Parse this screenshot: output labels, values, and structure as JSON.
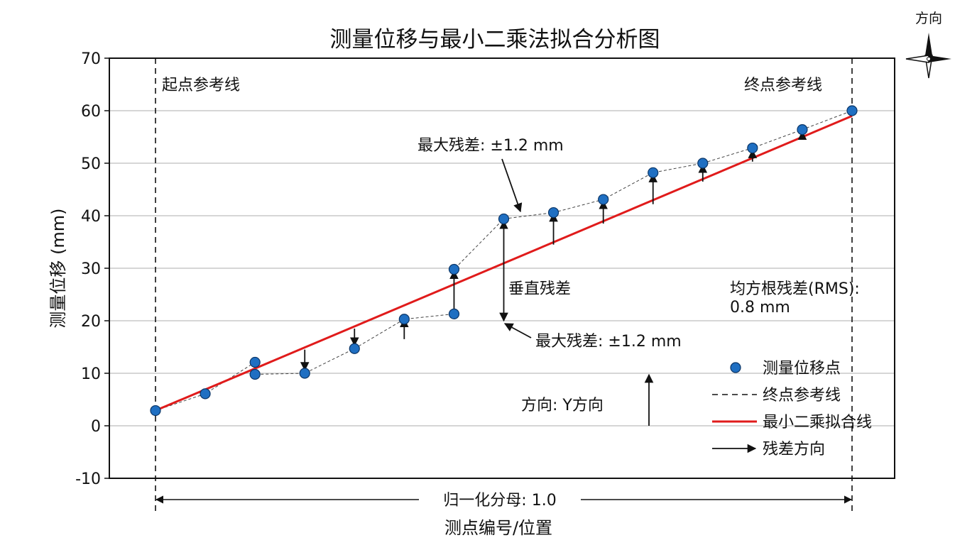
{
  "chart_data": {
    "type": "scatter",
    "title": "测量位移与最小二乘法拟合分析图",
    "xlabel": "测点编号/位置",
    "ylabel": "测量位移 (mm)",
    "ylim": [
      -10,
      70
    ],
    "yticks": [
      70,
      60,
      50,
      40,
      30,
      20,
      10,
      0,
      -10
    ],
    "grid": true,
    "legend_position": "bottom-right",
    "x": [
      0,
      0.0714,
      0.1429,
      0.1429,
      0.2143,
      0.2857,
      0.3571,
      0.4286,
      0.4286,
      0.5,
      0.5714,
      0.6429,
      0.7143,
      0.7857,
      0.8571,
      0.9286,
      1.0
    ],
    "series": [
      {
        "name": "测量位移点",
        "values": [
          2.9,
          6.1,
          12.1,
          9.8,
          10.0,
          14.7,
          20.3,
          21.3,
          29.8,
          39.4,
          40.6,
          43.1,
          48.2,
          50.0,
          52.9,
          56.4,
          60.0
        ]
      },
      {
        "name": "最小二乘拟合线",
        "fit": [
          [
            0,
            2.9
          ],
          [
            1.0,
            59.0
          ]
        ]
      }
    ],
    "residual_arrows": [
      {
        "x": 0.2143,
        "from": 14.5,
        "to": 10.6
      },
      {
        "x": 0.2857,
        "from": 18.5,
        "to": 15.3
      },
      {
        "x": 0.3571,
        "from": 16.5,
        "to": 20.3
      },
      {
        "x": 0.4286,
        "from": 21.3,
        "to": 29.5
      },
      {
        "x": 0.5,
        "from": 20.0,
        "to": 39.0
      },
      {
        "x": 0.5714,
        "from": 34.5,
        "to": 40.4
      },
      {
        "x": 0.6429,
        "from": 38.5,
        "to": 42.8
      },
      {
        "x": 0.7143,
        "from": 42.2,
        "to": 47.9
      },
      {
        "x": 0.7857,
        "from": 46.5,
        "to": 49.7
      },
      {
        "x": 0.8571,
        "from": 50.3,
        "to": 52.5
      },
      {
        "x": 0.9286,
        "from": 55.2,
        "to": 56.0
      }
    ],
    "normalization": {
      "label": "归一化分母: 1.0",
      "value": 1.0
    },
    "annotations": {
      "start_ref": "起点参考线",
      "end_ref": "终点参考线",
      "max_residual_top": "最大残差: ±1.2 mm",
      "vertical_residual": "垂直残差",
      "max_residual_bottom": "最大残差: ±1.2 mm",
      "rms_line1": "均方根残差(RMS):",
      "rms_line2": "0.8 mm",
      "direction_y": "方向: Y方向"
    },
    "legend": {
      "points": "测量位移点",
      "end_ref": "终点参考线",
      "fit": "最小二乘拟合线",
      "residual": "残差方向"
    },
    "compass_label": "方向",
    "colors": {
      "points": "#1f6fc2",
      "fit": "#e01b1b",
      "grid": "#bdbdbd",
      "axis": "#111111"
    }
  }
}
